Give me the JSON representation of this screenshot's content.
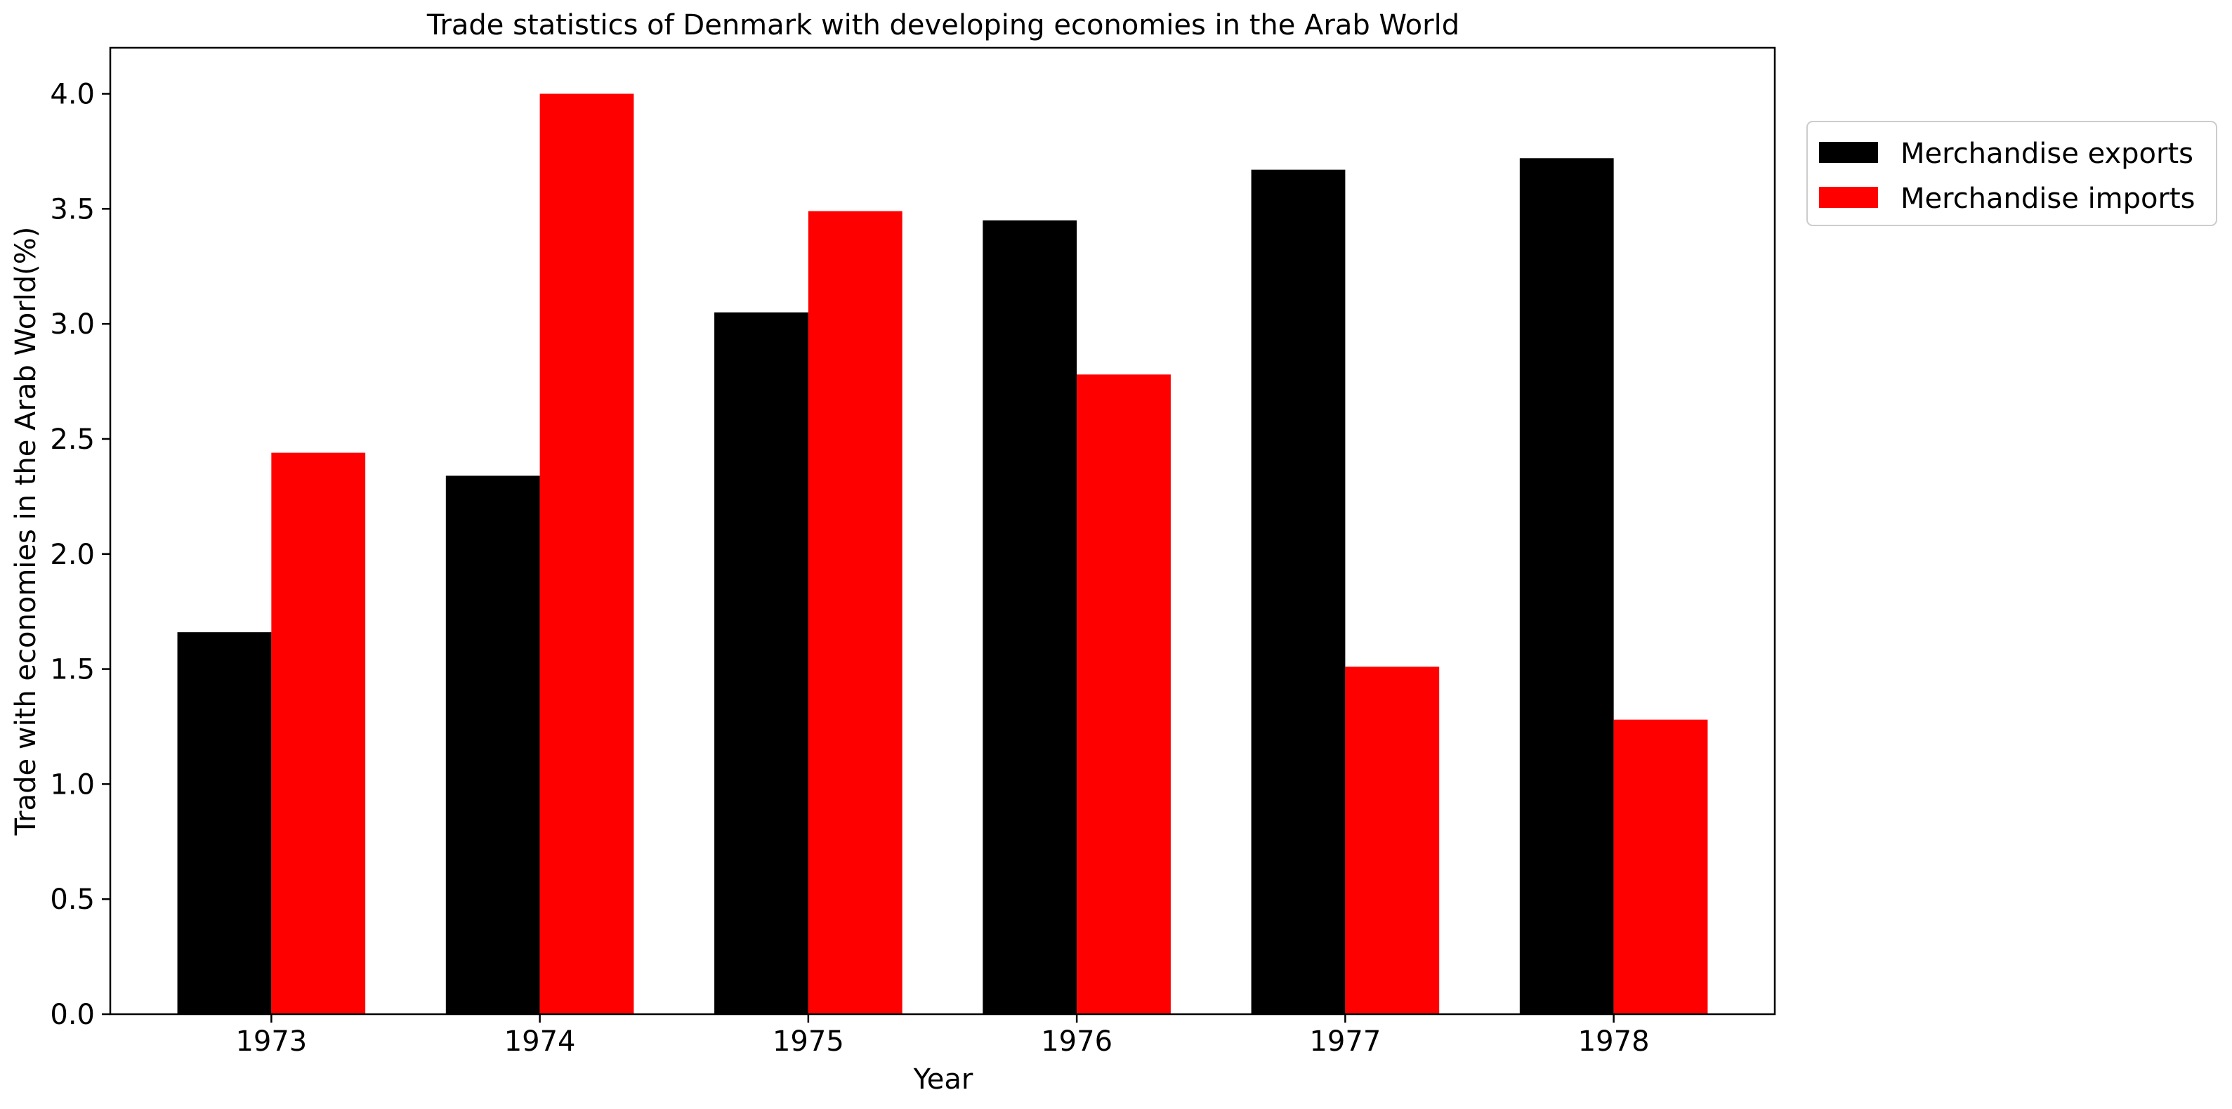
{
  "chart_data": {
    "type": "bar",
    "title": "Trade statistics of Denmark with developing economies in the Arab World",
    "xlabel": "Year",
    "ylabel": "Trade with economies in the Arab World(%)",
    "categories": [
      "1973",
      "1974",
      "1975",
      "1976",
      "1977",
      "1978"
    ],
    "series": [
      {
        "name": "Merchandise exports",
        "color": "#000000",
        "values": [
          1.66,
          2.34,
          3.05,
          3.45,
          3.67,
          3.72
        ]
      },
      {
        "name": "Merchandise imports",
        "color": "#ff0000",
        "values": [
          2.44,
          4.0,
          3.49,
          2.78,
          1.51,
          1.28
        ]
      }
    ],
    "ylim": [
      0,
      4.2
    ],
    "yticks": [
      "0.0",
      "0.5",
      "1.0",
      "1.5",
      "2.0",
      "2.5",
      "3.0",
      "3.5",
      "4.0"
    ],
    "grid": false,
    "legend_position": "outside upper-right"
  }
}
